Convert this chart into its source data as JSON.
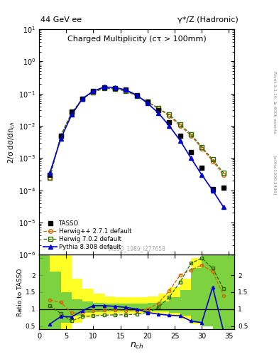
{
  "title_left": "44 GeV ee",
  "title_right": "γ*/Z (Hadronic)",
  "plot_title": "Charged Multiplicity",
  "plot_title2": "(cτ > 100mm)",
  "watermark": "TASSO_1989_I277658",
  "rivet_label": "Rivet 3.1.10, ≥ 600k events",
  "arxiv_label": "[arXiv:1306.3436]",
  "xlabel": "$n_{ch}$",
  "ylabel_main": "2/σ dσ/dn$_{ch}$",
  "ylabel_ratio": "Ratio to TASSO",
  "tasso_x": [
    2,
    4,
    6,
    8,
    10,
    12,
    14,
    16,
    18,
    20,
    22,
    24,
    26,
    28,
    30,
    32,
    34
  ],
  "tasso_y": [
    0.0003,
    0.005,
    0.028,
    0.07,
    0.12,
    0.155,
    0.15,
    0.13,
    0.09,
    0.055,
    0.03,
    0.013,
    0.005,
    0.0015,
    0.0005,
    0.00011,
    0.00012
  ],
  "herwig_pp_x": [
    2,
    4,
    6,
    8,
    10,
    12,
    14,
    16,
    18,
    20,
    22,
    24,
    26,
    28,
    30,
    32,
    34
  ],
  "herwig_pp_y": [
    0.00025,
    0.005,
    0.025,
    0.07,
    0.115,
    0.15,
    0.145,
    0.125,
    0.085,
    0.055,
    0.035,
    0.02,
    0.01,
    0.005,
    0.002,
    0.0008,
    0.0003
  ],
  "herwig702_x": [
    2,
    4,
    6,
    8,
    10,
    12,
    14,
    16,
    18,
    20,
    22,
    24,
    26,
    28,
    30,
    32,
    34
  ],
  "herwig702_y": [
    0.00025,
    0.005,
    0.025,
    0.07,
    0.11,
    0.145,
    0.14,
    0.12,
    0.085,
    0.055,
    0.035,
    0.022,
    0.011,
    0.0055,
    0.0022,
    0.0009,
    0.00035
  ],
  "pythia_x": [
    2,
    4,
    6,
    8,
    10,
    12,
    14,
    16,
    18,
    20,
    22,
    24,
    26,
    28,
    30,
    32,
    34
  ],
  "pythia_y": [
    0.00035,
    0.004,
    0.022,
    0.07,
    0.12,
    0.16,
    0.155,
    0.13,
    0.09,
    0.05,
    0.025,
    0.01,
    0.0035,
    0.001,
    0.0003,
    0.0001,
    3e-05
  ],
  "ratio_herwig_pp": [
    1.27,
    1.2,
    0.88,
    0.9,
    0.95,
    0.97,
    0.97,
    0.96,
    0.95,
    1.0,
    1.17,
    1.54,
    2.0,
    2.15,
    2.3,
    2.1,
    1.4
  ],
  "ratio_herwig702": [
    1.1,
    0.87,
    0.65,
    0.78,
    0.8,
    0.82,
    0.83,
    0.83,
    0.85,
    0.9,
    1.05,
    1.35,
    1.8,
    2.35,
    2.5,
    2.2,
    1.6
  ],
  "ratio_pythia": [
    0.56,
    0.78,
    0.77,
    0.95,
    1.1,
    1.1,
    1.08,
    1.05,
    1.0,
    0.9,
    0.85,
    0.82,
    0.8,
    0.65,
    0.6,
    1.65,
    0.35
  ],
  "band_edges": [
    0,
    2,
    4,
    6,
    8,
    10,
    12,
    14,
    16,
    18,
    20,
    22,
    24,
    26,
    28,
    30,
    32,
    34,
    36
  ],
  "band_yellow_lo": [
    0.4,
    0.4,
    0.4,
    0.6,
    0.75,
    0.82,
    0.85,
    0.87,
    0.87,
    0.87,
    0.87,
    0.87,
    0.8,
    0.7,
    0.55,
    0.5,
    0.4,
    0.4
  ],
  "band_yellow_hi": [
    2.6,
    2.6,
    2.6,
    1.9,
    1.6,
    1.45,
    1.38,
    1.35,
    1.35,
    1.35,
    1.38,
    1.45,
    1.65,
    1.9,
    2.5,
    2.6,
    2.6,
    2.6
  ],
  "band_green_lo": [
    0.4,
    0.4,
    0.6,
    0.8,
    0.88,
    0.92,
    0.93,
    0.93,
    0.93,
    0.93,
    0.93,
    0.93,
    0.88,
    0.8,
    0.6,
    0.5,
    0.4,
    0.4
  ],
  "band_green_hi": [
    2.6,
    2.1,
    1.5,
    1.28,
    1.22,
    1.18,
    1.16,
    1.16,
    1.16,
    1.16,
    1.18,
    1.22,
    1.35,
    1.55,
    2.2,
    2.6,
    2.6,
    2.6
  ],
  "color_tasso": "#000000",
  "color_herwig_pp": "#cc6600",
  "color_herwig702": "#336600",
  "color_pythia": "#0000cc",
  "color_yellow": "#ffff00",
  "color_green": "#66cc44",
  "background_color": "#ffffff",
  "ylim_main": [
    1e-06,
    10
  ],
  "ylim_ratio": [
    0.4,
    2.6
  ],
  "xlim": [
    0,
    36
  ]
}
